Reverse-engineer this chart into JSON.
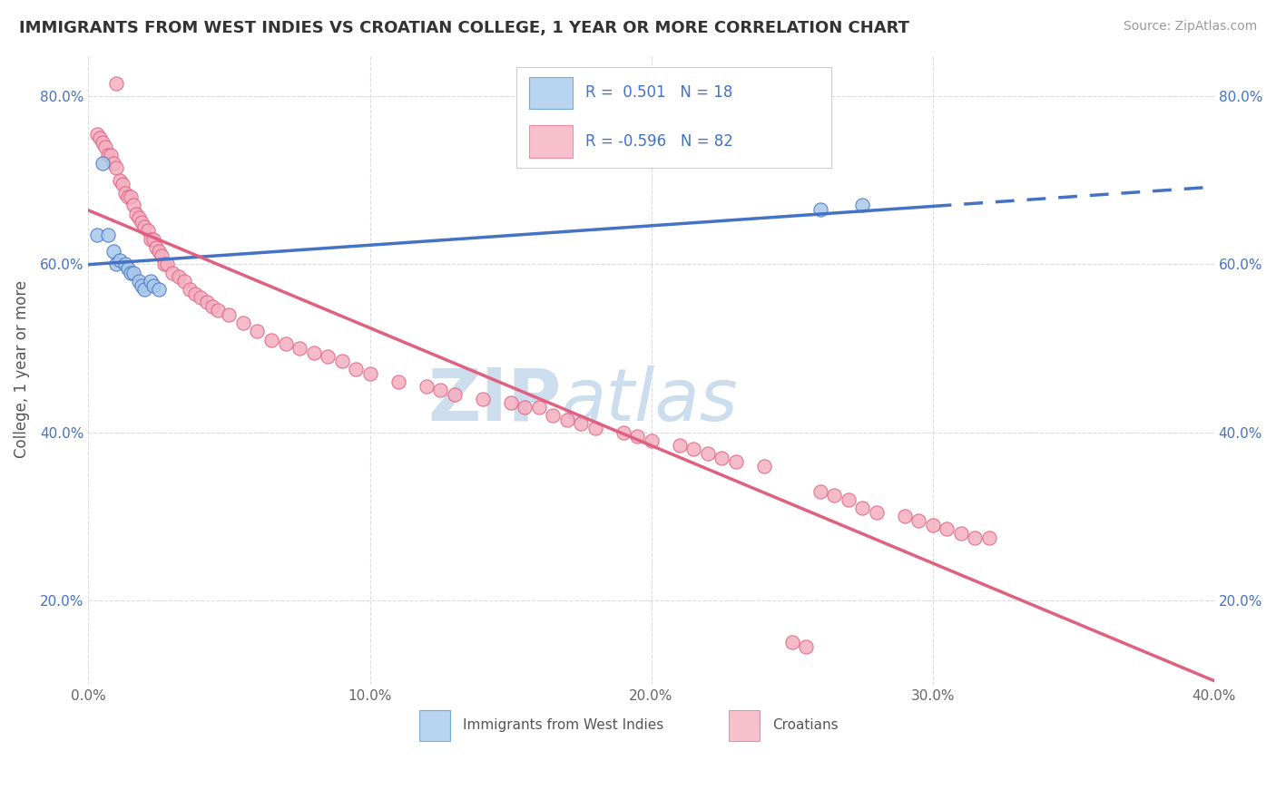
{
  "title": "IMMIGRANTS FROM WEST INDIES VS CROATIAN COLLEGE, 1 YEAR OR MORE CORRELATION CHART",
  "source": "Source: ZipAtlas.com",
  "ylabel": "College, 1 year or more",
  "x_min": 0.0,
  "x_max": 0.4,
  "y_min": 0.1,
  "y_max": 0.85,
  "x_ticks": [
    0.0,
    0.1,
    0.2,
    0.3,
    0.4
  ],
  "x_tick_labels": [
    "0.0%",
    "10.0%",
    "20.0%",
    "30.0%",
    "40.0%"
  ],
  "y_ticks": [
    0.2,
    0.4,
    0.6,
    0.8
  ],
  "y_tick_labels": [
    "20.0%",
    "40.0%",
    "60.0%",
    "80.0%"
  ],
  "blue_scatter": [
    [
      0.003,
      0.635
    ],
    [
      0.005,
      0.72
    ],
    [
      0.007,
      0.635
    ],
    [
      0.009,
      0.615
    ],
    [
      0.01,
      0.6
    ],
    [
      0.011,
      0.605
    ],
    [
      0.013,
      0.6
    ],
    [
      0.014,
      0.595
    ],
    [
      0.015,
      0.59
    ],
    [
      0.016,
      0.59
    ],
    [
      0.018,
      0.58
    ],
    [
      0.019,
      0.575
    ],
    [
      0.02,
      0.57
    ],
    [
      0.022,
      0.58
    ],
    [
      0.023,
      0.575
    ],
    [
      0.025,
      0.57
    ],
    [
      0.26,
      0.665
    ],
    [
      0.275,
      0.67
    ]
  ],
  "pink_scatter": [
    [
      0.003,
      0.755
    ],
    [
      0.004,
      0.75
    ],
    [
      0.005,
      0.745
    ],
    [
      0.006,
      0.74
    ],
    [
      0.007,
      0.73
    ],
    [
      0.008,
      0.73
    ],
    [
      0.009,
      0.72
    ],
    [
      0.01,
      0.715
    ],
    [
      0.011,
      0.7
    ],
    [
      0.012,
      0.695
    ],
    [
      0.013,
      0.685
    ],
    [
      0.014,
      0.68
    ],
    [
      0.015,
      0.68
    ],
    [
      0.016,
      0.67
    ],
    [
      0.017,
      0.66
    ],
    [
      0.018,
      0.655
    ],
    [
      0.019,
      0.65
    ],
    [
      0.02,
      0.645
    ],
    [
      0.021,
      0.64
    ],
    [
      0.022,
      0.63
    ],
    [
      0.023,
      0.63
    ],
    [
      0.024,
      0.62
    ],
    [
      0.025,
      0.615
    ],
    [
      0.026,
      0.61
    ],
    [
      0.027,
      0.6
    ],
    [
      0.028,
      0.6
    ],
    [
      0.03,
      0.59
    ],
    [
      0.032,
      0.585
    ],
    [
      0.034,
      0.58
    ],
    [
      0.036,
      0.57
    ],
    [
      0.038,
      0.565
    ],
    [
      0.04,
      0.56
    ],
    [
      0.042,
      0.555
    ],
    [
      0.044,
      0.55
    ],
    [
      0.046,
      0.545
    ],
    [
      0.05,
      0.54
    ],
    [
      0.055,
      0.53
    ],
    [
      0.06,
      0.52
    ],
    [
      0.065,
      0.51
    ],
    [
      0.07,
      0.505
    ],
    [
      0.075,
      0.5
    ],
    [
      0.08,
      0.495
    ],
    [
      0.085,
      0.49
    ],
    [
      0.09,
      0.485
    ],
    [
      0.095,
      0.475
    ],
    [
      0.1,
      0.47
    ],
    [
      0.11,
      0.46
    ],
    [
      0.12,
      0.455
    ],
    [
      0.125,
      0.45
    ],
    [
      0.13,
      0.445
    ],
    [
      0.14,
      0.44
    ],
    [
      0.15,
      0.435
    ],
    [
      0.155,
      0.43
    ],
    [
      0.16,
      0.43
    ],
    [
      0.165,
      0.42
    ],
    [
      0.17,
      0.415
    ],
    [
      0.175,
      0.41
    ],
    [
      0.18,
      0.405
    ],
    [
      0.19,
      0.4
    ],
    [
      0.195,
      0.395
    ],
    [
      0.2,
      0.39
    ],
    [
      0.21,
      0.385
    ],
    [
      0.215,
      0.38
    ],
    [
      0.22,
      0.375
    ],
    [
      0.225,
      0.37
    ],
    [
      0.23,
      0.365
    ],
    [
      0.24,
      0.36
    ],
    [
      0.25,
      0.15
    ],
    [
      0.255,
      0.145
    ],
    [
      0.26,
      0.33
    ],
    [
      0.265,
      0.325
    ],
    [
      0.27,
      0.32
    ],
    [
      0.275,
      0.31
    ],
    [
      0.28,
      0.305
    ],
    [
      0.29,
      0.3
    ],
    [
      0.295,
      0.295
    ],
    [
      0.3,
      0.29
    ],
    [
      0.305,
      0.285
    ],
    [
      0.31,
      0.28
    ],
    [
      0.315,
      0.275
    ],
    [
      0.32,
      0.275
    ],
    [
      0.01,
      0.815
    ]
  ],
  "blue_color": "#a8c8e8",
  "pink_color": "#f4afc0",
  "blue_line_color": "#4472c4",
  "pink_line_color": "#e06080",
  "bg_color": "#ffffff",
  "grid_color": "#cccccc",
  "watermark_color": "#ccdded",
  "legend_blue_fc": "#b8d4f0",
  "legend_blue_ec": "#7aaad8",
  "legend_pink_fc": "#f8c0cc",
  "legend_pink_ec": "#e890a8"
}
